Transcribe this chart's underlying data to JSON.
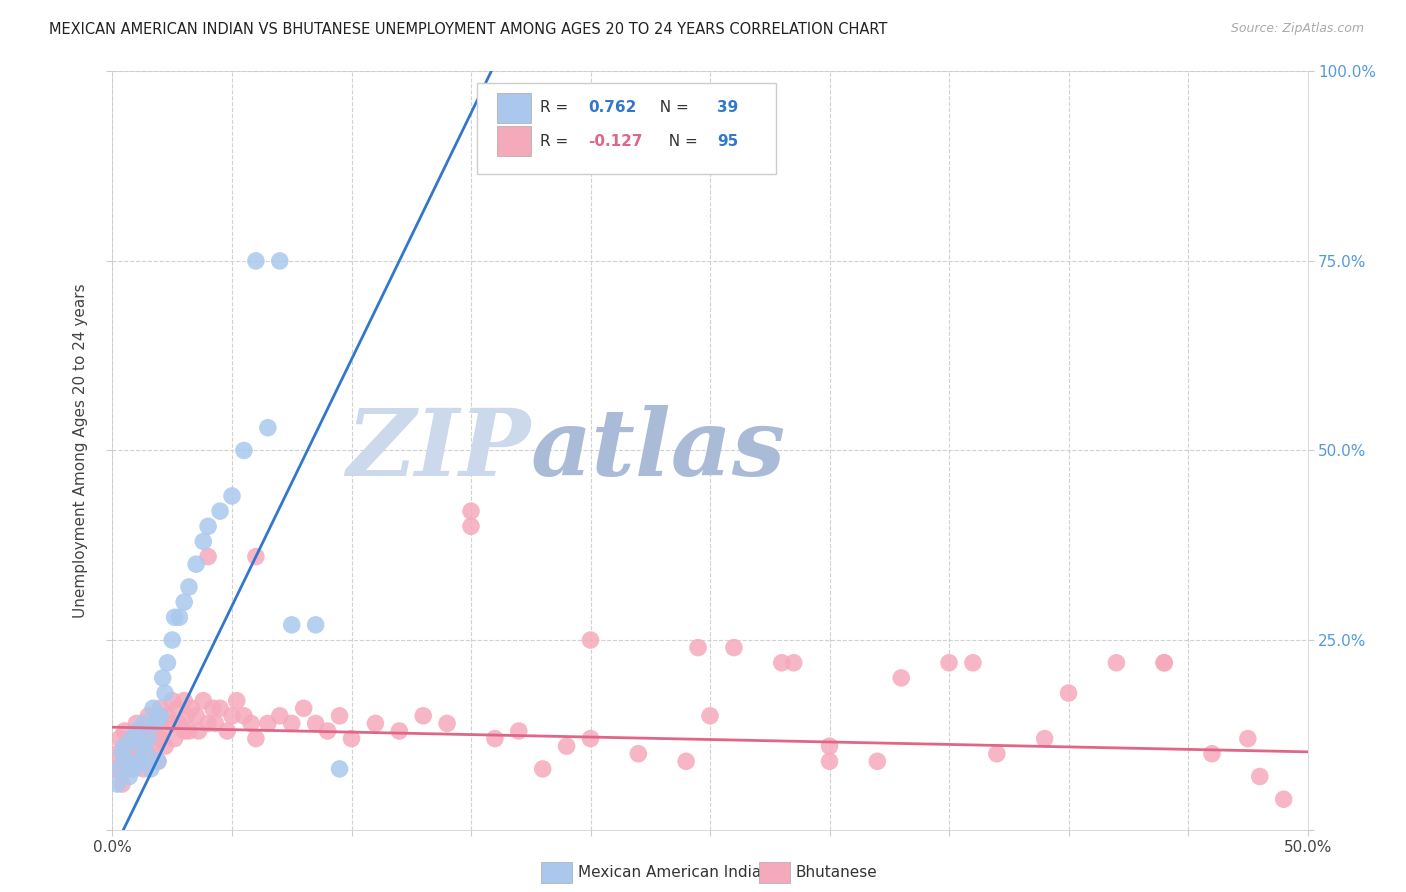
{
  "title": "MEXICAN AMERICAN INDIAN VS BHUTANESE UNEMPLOYMENT AMONG AGES 20 TO 24 YEARS CORRELATION CHART",
  "source": "Source: ZipAtlas.com",
  "ylabel": "Unemployment Among Ages 20 to 24 years",
  "xlim": [
    0.0,
    0.5
  ],
  "ylim": [
    0.0,
    1.0
  ],
  "xticks": [
    0.0,
    0.05,
    0.1,
    0.15,
    0.2,
    0.25,
    0.3,
    0.35,
    0.4,
    0.45,
    0.5
  ],
  "xtick_labels": [
    "0.0%",
    "",
    "",
    "",
    "",
    "",
    "",
    "",
    "",
    "",
    "50.0%"
  ],
  "yticks": [
    0.0,
    0.25,
    0.5,
    0.75,
    1.0
  ],
  "ytick_labels_right": [
    "",
    "25.0%",
    "50.0%",
    "75.0%",
    "100.0%"
  ],
  "blue_R": 0.762,
  "blue_N": 39,
  "pink_R": -0.127,
  "pink_N": 95,
  "blue_scatter_color": "#aac8ee",
  "pink_scatter_color": "#f5aabb",
  "blue_line_color": "#3377cc",
  "pink_line_color": "#e06688",
  "watermark_zip_color": "#c8d8ee",
  "watermark_atlas_color": "#aabbd8",
  "legend_label_blue": "Mexican American Indians",
  "legend_label_pink": "Bhutanese",
  "blue_line_slope": 6.5,
  "blue_line_intercept": -0.03,
  "pink_line_slope": -0.065,
  "pink_line_intercept": 0.135,
  "blue_scatter_x": [
    0.002,
    0.003,
    0.004,
    0.005,
    0.006,
    0.007,
    0.008,
    0.009,
    0.01,
    0.011,
    0.012,
    0.013,
    0.014,
    0.015,
    0.016,
    0.017,
    0.018,
    0.019,
    0.02,
    0.021,
    0.022,
    0.023,
    0.025,
    0.026,
    0.028,
    0.03,
    0.032,
    0.035,
    0.038,
    0.04,
    0.045,
    0.05,
    0.055,
    0.06,
    0.065,
    0.07,
    0.075,
    0.085,
    0.095
  ],
  "blue_scatter_y": [
    0.06,
    0.08,
    0.1,
    0.11,
    0.09,
    0.07,
    0.12,
    0.08,
    0.13,
    0.09,
    0.11,
    0.14,
    0.1,
    0.12,
    0.08,
    0.16,
    0.14,
    0.09,
    0.15,
    0.2,
    0.18,
    0.22,
    0.25,
    0.28,
    0.28,
    0.3,
    0.32,
    0.35,
    0.38,
    0.4,
    0.42,
    0.44,
    0.5,
    0.75,
    0.53,
    0.75,
    0.27,
    0.27,
    0.08
  ],
  "pink_scatter_x": [
    0.001,
    0.002,
    0.003,
    0.004,
    0.005,
    0.005,
    0.006,
    0.007,
    0.008,
    0.009,
    0.01,
    0.01,
    0.011,
    0.012,
    0.013,
    0.014,
    0.015,
    0.015,
    0.016,
    0.017,
    0.018,
    0.019,
    0.02,
    0.02,
    0.021,
    0.022,
    0.023,
    0.025,
    0.025,
    0.026,
    0.027,
    0.028,
    0.03,
    0.03,
    0.031,
    0.032,
    0.033,
    0.035,
    0.036,
    0.038,
    0.04,
    0.04,
    0.042,
    0.043,
    0.045,
    0.048,
    0.05,
    0.052,
    0.055,
    0.058,
    0.06,
    0.06,
    0.065,
    0.07,
    0.075,
    0.08,
    0.085,
    0.09,
    0.095,
    0.1,
    0.11,
    0.12,
    0.13,
    0.14,
    0.15,
    0.16,
    0.17,
    0.18,
    0.19,
    0.2,
    0.22,
    0.24,
    0.26,
    0.28,
    0.3,
    0.32,
    0.35,
    0.37,
    0.39,
    0.42,
    0.44,
    0.46,
    0.48,
    0.49,
    0.245,
    0.285,
    0.33,
    0.36,
    0.4,
    0.44,
    0.475,
    0.15,
    0.2,
    0.25,
    0.3
  ],
  "pink_scatter_y": [
    0.08,
    0.1,
    0.12,
    0.06,
    0.09,
    0.13,
    0.11,
    0.08,
    0.12,
    0.1,
    0.09,
    0.14,
    0.11,
    0.13,
    0.08,
    0.12,
    0.1,
    0.15,
    0.13,
    0.11,
    0.14,
    0.09,
    0.12,
    0.16,
    0.13,
    0.11,
    0.15,
    0.14,
    0.17,
    0.12,
    0.16,
    0.14,
    0.13,
    0.17,
    0.15,
    0.13,
    0.16,
    0.15,
    0.13,
    0.17,
    0.14,
    0.36,
    0.16,
    0.14,
    0.16,
    0.13,
    0.15,
    0.17,
    0.15,
    0.14,
    0.12,
    0.36,
    0.14,
    0.15,
    0.14,
    0.16,
    0.14,
    0.13,
    0.15,
    0.12,
    0.14,
    0.13,
    0.15,
    0.14,
    0.4,
    0.12,
    0.13,
    0.08,
    0.11,
    0.12,
    0.1,
    0.09,
    0.24,
    0.22,
    0.11,
    0.09,
    0.22,
    0.1,
    0.12,
    0.22,
    0.22,
    0.1,
    0.07,
    0.04,
    0.24,
    0.22,
    0.2,
    0.22,
    0.18,
    0.22,
    0.12,
    0.42,
    0.25,
    0.15,
    0.09
  ]
}
